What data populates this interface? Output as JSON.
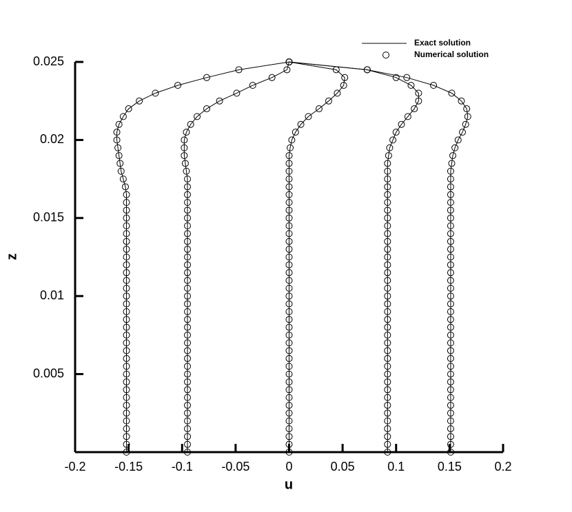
{
  "chart_data": {
    "type": "profile",
    "xlabel": "u",
    "ylabel": "z",
    "legend": {
      "line": "Exact solution",
      "marker": "Numerical solution"
    },
    "xlim": [
      -0.2,
      0.2
    ],
    "xticks": [
      -0.2,
      -0.15,
      -0.1,
      -0.05,
      0,
      0.05,
      0.1,
      0.15,
      0.2
    ],
    "ylim": [
      0,
      0.025
    ],
    "yticks": [
      0.005,
      0.01,
      0.015,
      0.02,
      0.025
    ],
    "color": "#000000",
    "z": [
      0,
      0.0005,
      0.001,
      0.0015,
      0.002,
      0.0025,
      0.003,
      0.0035,
      0.004,
      0.0045,
      0.005,
      0.0055,
      0.006,
      0.0065,
      0.007,
      0.0075,
      0.008,
      0.0085,
      0.009,
      0.0095,
      0.01,
      0.0105,
      0.011,
      0.0115,
      0.012,
      0.0125,
      0.013,
      0.0135,
      0.014,
      0.0145,
      0.015,
      0.0155,
      0.016,
      0.0165,
      0.017,
      0.0175,
      0.018,
      0.0185,
      0.019,
      0.0195,
      0.02,
      0.0205,
      0.021,
      0.0215,
      0.022,
      0.0225,
      0.023,
      0.0235,
      0.024,
      0.0245,
      0.025
    ],
    "profiles": [
      {
        "u": [
          -0.152,
          -0.152,
          -0.152,
          -0.152,
          -0.152,
          -0.152,
          -0.152,
          -0.152,
          -0.152,
          -0.152,
          -0.152,
          -0.152,
          -0.152,
          -0.152,
          -0.152,
          -0.152,
          -0.152,
          -0.152,
          -0.152,
          -0.152,
          -0.152,
          -0.152,
          -0.152,
          -0.152,
          -0.152,
          -0.152,
          -0.152,
          -0.152,
          -0.152,
          -0.152,
          -0.152,
          -0.152,
          -0.152,
          -0.152,
          -0.153,
          -0.155,
          -0.157,
          -0.158,
          -0.159,
          -0.16,
          -0.161,
          -0.161,
          -0.159,
          -0.155,
          -0.15,
          -0.14,
          -0.125,
          -0.104,
          -0.077,
          -0.047,
          0
        ]
      },
      {
        "u": [
          -0.095,
          -0.095,
          -0.095,
          -0.095,
          -0.095,
          -0.095,
          -0.095,
          -0.095,
          -0.095,
          -0.095,
          -0.095,
          -0.095,
          -0.095,
          -0.095,
          -0.095,
          -0.095,
          -0.095,
          -0.095,
          -0.095,
          -0.095,
          -0.095,
          -0.095,
          -0.095,
          -0.095,
          -0.095,
          -0.095,
          -0.095,
          -0.095,
          -0.095,
          -0.095,
          -0.095,
          -0.095,
          -0.095,
          -0.095,
          -0.095,
          -0.095,
          -0.096,
          -0.097,
          -0.098,
          -0.098,
          -0.098,
          -0.096,
          -0.092,
          -0.086,
          -0.077,
          -0.065,
          -0.049,
          -0.034,
          -0.016,
          -0.002,
          0
        ]
      },
      {
        "u": [
          0,
          0,
          0,
          0,
          0,
          0,
          0,
          0,
          0,
          0,
          0,
          0,
          0,
          0,
          0,
          0,
          0,
          0,
          0,
          0,
          0,
          0,
          0,
          0,
          0,
          0,
          0,
          0,
          0,
          0,
          0,
          0,
          0,
          0,
          0,
          0,
          0,
          0,
          0,
          0.001,
          0.0025,
          0.006,
          0.011,
          0.018,
          0.028,
          0.037,
          0.045,
          0.051,
          0.052,
          0.044,
          0
        ]
      },
      {
        "u": [
          0.092,
          0.092,
          0.092,
          0.092,
          0.092,
          0.092,
          0.092,
          0.092,
          0.092,
          0.092,
          0.092,
          0.092,
          0.092,
          0.092,
          0.092,
          0.092,
          0.092,
          0.092,
          0.092,
          0.092,
          0.092,
          0.092,
          0.092,
          0.092,
          0.092,
          0.092,
          0.092,
          0.092,
          0.092,
          0.092,
          0.092,
          0.092,
          0.092,
          0.092,
          0.092,
          0.092,
          0.092,
          0.092,
          0.093,
          0.094,
          0.097,
          0.1,
          0.105,
          0.111,
          0.117,
          0.121,
          0.121,
          0.114,
          0.1,
          0.073,
          0
        ]
      },
      {
        "u": [
          0.151,
          0.151,
          0.151,
          0.151,
          0.151,
          0.151,
          0.151,
          0.151,
          0.151,
          0.151,
          0.151,
          0.151,
          0.151,
          0.151,
          0.151,
          0.151,
          0.151,
          0.151,
          0.151,
          0.151,
          0.151,
          0.151,
          0.151,
          0.151,
          0.151,
          0.151,
          0.151,
          0.151,
          0.151,
          0.151,
          0.151,
          0.151,
          0.151,
          0.151,
          0.151,
          0.151,
          0.151,
          0.152,
          0.153,
          0.155,
          0.158,
          0.162,
          0.165,
          0.167,
          0.166,
          0.161,
          0.152,
          0.135,
          0.11,
          0.073,
          0
        ]
      }
    ]
  }
}
